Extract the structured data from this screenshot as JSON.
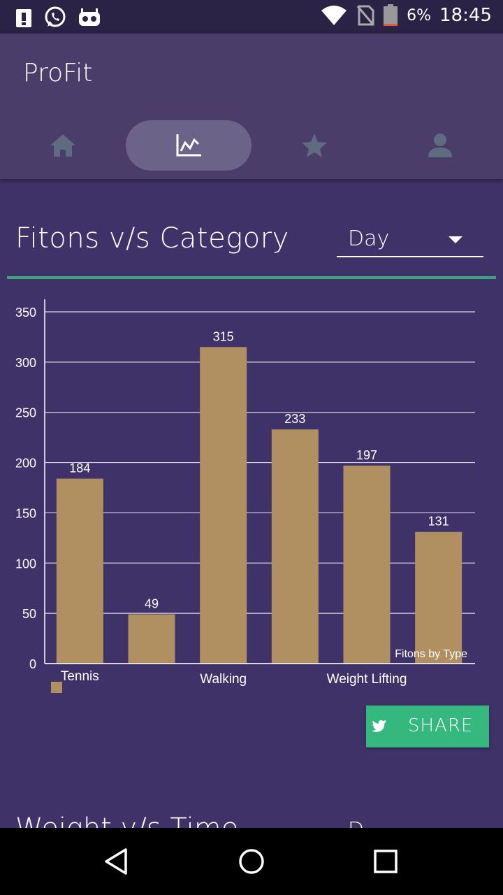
{
  "status_bar": {
    "icons_left": [
      "alert-icon",
      "whatsapp-icon",
      "cyanogen-icon"
    ],
    "icons_right": [
      "wifi-icon",
      "no-sim-icon",
      "battery-icon"
    ],
    "battery": "6%",
    "time": "18:45"
  },
  "app": {
    "title": "ProFit"
  },
  "tabs": [
    {
      "name": "home-icon",
      "active": false
    },
    {
      "name": "chart-icon",
      "active": true
    },
    {
      "name": "star-icon",
      "active": false
    },
    {
      "name": "person-icon",
      "active": false
    }
  ],
  "section": {
    "title": "Fitons v/s Category",
    "period_select": {
      "value": "Day"
    }
  },
  "chart_data": {
    "type": "bar",
    "categories": [
      "Tennis",
      "",
      "Walking",
      "",
      "Weight Lifting",
      ""
    ],
    "values": [
      184,
      49,
      315,
      233,
      197,
      131
    ],
    "ylim": [
      0,
      350
    ],
    "yticks": [
      "0",
      "50",
      "100",
      "150",
      "200",
      "250",
      "300",
      "350"
    ],
    "legend_label": "Fitons by Type",
    "bar_color": "#b09060",
    "grid": true
  },
  "share_button": {
    "label": "SHARE"
  },
  "next_section": {
    "title": "Weight v/s Time",
    "select_value": "D"
  },
  "colors": {
    "background": "#3e3268",
    "appbar": "#4a3d6a",
    "accent": "#35b87e",
    "divider": "#3ca57b"
  }
}
